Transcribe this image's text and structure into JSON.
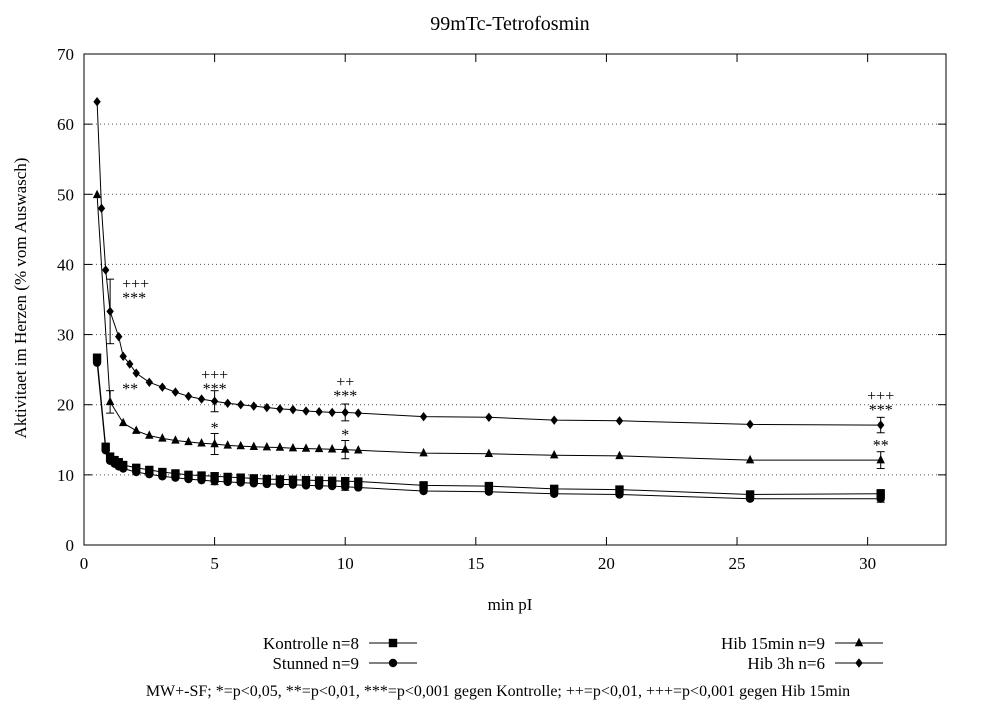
{
  "chart_data": {
    "type": "line",
    "title": "99mTc-Tetrofosmin",
    "xlabel": "min pI",
    "ylabel": "Aktivitaet im Herzen (% vom Auswasch)",
    "xlim": [
      0,
      33
    ],
    "ylim": [
      0,
      70
    ],
    "xticks": [
      0,
      5,
      10,
      15,
      20,
      25,
      30
    ],
    "yticks": [
      0,
      10,
      20,
      30,
      40,
      50,
      60,
      70
    ],
    "grid": "horizontal dotted",
    "legend_position": "below plot, two columns",
    "footnote": "MW+-SF; *=p<0,05, **=p<0,01, ***=p<0,001 gegen Kontrolle; ++=p<0,01, +++=p<0,001 gegen Hib 15min",
    "series": [
      {
        "name": "Kontrolle n=8",
        "marker": "square",
        "x": [
          0.5,
          0.83,
          1.0,
          1.17,
          1.33,
          1.5,
          2.0,
          2.5,
          3.0,
          3.5,
          4.0,
          4.5,
          5.0,
          5.5,
          6.0,
          6.5,
          7.0,
          7.5,
          8.0,
          8.5,
          9.0,
          9.5,
          10.0,
          10.5,
          13.0,
          15.5,
          18.0,
          20.5,
          25.5,
          30.5
        ],
        "y": [
          26.7,
          14.0,
          12.6,
          12.1,
          11.8,
          11.4,
          11.0,
          10.7,
          10.4,
          10.2,
          10.0,
          9.9,
          9.8,
          9.7,
          9.6,
          9.5,
          9.4,
          9.35,
          9.3,
          9.25,
          9.2,
          9.15,
          9.1,
          9.05,
          8.5,
          8.4,
          8.0,
          7.9,
          7.2,
          7.3
        ],
        "error": [
          null,
          null,
          null,
          null,
          null,
          null,
          null,
          null,
          null,
          null,
          null,
          null,
          0.5,
          null,
          null,
          null,
          null,
          null,
          null,
          null,
          null,
          null,
          0.5,
          null,
          null,
          null,
          null,
          null,
          null,
          0.6
        ]
      },
      {
        "name": "Stunned n=9",
        "marker": "circle",
        "x": [
          0.5,
          0.83,
          1.0,
          1.17,
          1.33,
          1.5,
          2.0,
          2.5,
          3.0,
          3.5,
          4.0,
          4.5,
          5.0,
          5.5,
          6.0,
          6.5,
          7.0,
          7.5,
          8.0,
          8.5,
          9.0,
          9.5,
          10.0,
          10.5,
          13.0,
          15.5,
          18.0,
          20.5,
          25.5,
          30.5
        ],
        "y": [
          26.0,
          13.5,
          12.0,
          11.6,
          11.2,
          10.9,
          10.4,
          10.1,
          9.8,
          9.6,
          9.4,
          9.25,
          9.1,
          9.0,
          8.9,
          8.8,
          8.7,
          8.65,
          8.6,
          8.5,
          8.45,
          8.4,
          8.3,
          8.2,
          7.7,
          7.6,
          7.3,
          7.2,
          6.6,
          6.6
        ],
        "error": [
          null,
          null,
          null,
          null,
          null,
          null,
          null,
          null,
          null,
          null,
          null,
          null,
          0.5,
          null,
          null,
          null,
          null,
          null,
          null,
          null,
          null,
          null,
          0.5,
          null,
          null,
          null,
          null,
          null,
          null,
          0.5
        ]
      },
      {
        "name": "Hib 15min n=9",
        "marker": "triangle",
        "x": [
          0.5,
          1.0,
          1.5,
          2.0,
          2.5,
          3.0,
          3.5,
          4.0,
          4.5,
          5.0,
          5.5,
          6.0,
          6.5,
          7.0,
          7.5,
          8.0,
          8.5,
          9.0,
          9.5,
          10.0,
          10.5,
          13.0,
          15.5,
          18.0,
          20.5,
          25.5,
          30.5
        ],
        "y": [
          49.9,
          20.4,
          17.4,
          16.3,
          15.6,
          15.2,
          14.9,
          14.7,
          14.5,
          14.4,
          14.2,
          14.1,
          14.0,
          13.95,
          13.9,
          13.8,
          13.75,
          13.7,
          13.65,
          13.6,
          13.5,
          13.1,
          13.0,
          12.8,
          12.7,
          12.1,
          12.1
        ],
        "error": [
          null,
          1.6,
          null,
          null,
          null,
          null,
          null,
          null,
          null,
          1.5,
          null,
          null,
          null,
          null,
          null,
          null,
          null,
          null,
          null,
          1.3,
          null,
          null,
          null,
          null,
          null,
          null,
          1.2
        ]
      },
      {
        "name": "Hib 3h n=6",
        "marker": "diamond",
        "x": [
          0.5,
          0.67,
          0.83,
          1.0,
          1.33,
          1.5,
          1.75,
          2.0,
          2.5,
          3.0,
          3.5,
          4.0,
          4.5,
          5.0,
          5.5,
          6.0,
          6.5,
          7.0,
          7.5,
          8.0,
          8.5,
          9.0,
          9.5,
          10.0,
          10.5,
          13.0,
          15.5,
          18.0,
          20.5,
          25.5,
          30.5
        ],
        "y": [
          63.2,
          48.0,
          39.2,
          33.3,
          29.7,
          26.9,
          25.8,
          24.5,
          23.2,
          22.5,
          21.8,
          21.2,
          20.8,
          20.5,
          20.2,
          20.0,
          19.8,
          19.6,
          19.4,
          19.3,
          19.1,
          19.0,
          18.9,
          18.9,
          18.8,
          18.3,
          18.2,
          17.8,
          17.7,
          17.2,
          17.1
        ],
        "error": [
          null,
          null,
          null,
          4.6,
          null,
          null,
          null,
          null,
          null,
          null,
          null,
          null,
          null,
          1.5,
          null,
          null,
          null,
          null,
          null,
          null,
          null,
          null,
          null,
          1.2,
          null,
          null,
          null,
          null,
          null,
          null,
          1.1
        ]
      }
    ],
    "annotations": [
      {
        "x": 1.0,
        "y": 34.5,
        "lines": [
          "+++",
          "***"
        ]
      },
      {
        "x": 1.0,
        "y": 21.5,
        "lines": [
          "**"
        ]
      },
      {
        "x": 5.0,
        "y": 21.5,
        "lines": [
          "+++",
          "***"
        ]
      },
      {
        "x": 5.0,
        "y": 16.0,
        "lines": [
          "*"
        ]
      },
      {
        "x": 10.0,
        "y": 20.5,
        "lines": [
          "++",
          "***"
        ]
      },
      {
        "x": 10.0,
        "y": 15.0,
        "lines": [
          "*"
        ]
      },
      {
        "x": 30.5,
        "y": 18.5,
        "lines": [
          "+++",
          "***"
        ]
      },
      {
        "x": 30.5,
        "y": 13.5,
        "lines": [
          "**"
        ]
      }
    ]
  }
}
